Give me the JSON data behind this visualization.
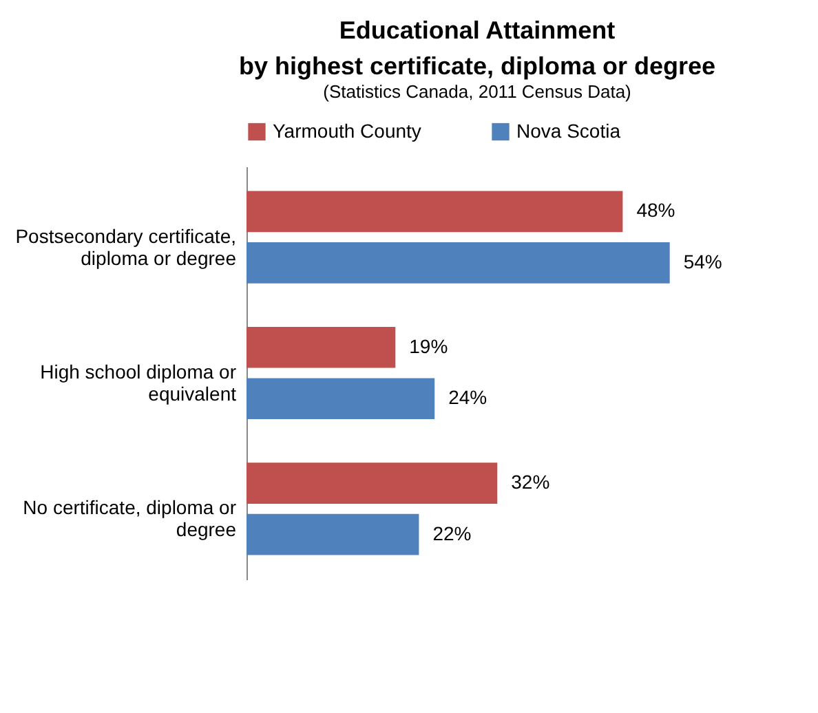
{
  "chart_data": {
    "type": "bar",
    "orientation": "horizontal",
    "title": "Educational Attainment",
    "subtitle": "by highest certificate, diploma or degree",
    "annotations": [
      "(Statistics Canada, 2011 Census Data)"
    ],
    "categories": [
      "Postsecondary certificate, diploma or degree",
      "High school diploma or equivalent",
      "No certificate, diploma or degree"
    ],
    "series": [
      {
        "name": "Yarmouth County",
        "color": "#c0504d",
        "values": [
          48,
          19,
          32
        ],
        "value_labels": [
          "48%",
          "19%",
          "32%"
        ]
      },
      {
        "name": "Nova Scotia",
        "color": "#4f81bd",
        "values": [
          54,
          24,
          22
        ],
        "value_labels": [
          "54%",
          "24%",
          "22%"
        ]
      }
    ],
    "legend": "top"
  }
}
